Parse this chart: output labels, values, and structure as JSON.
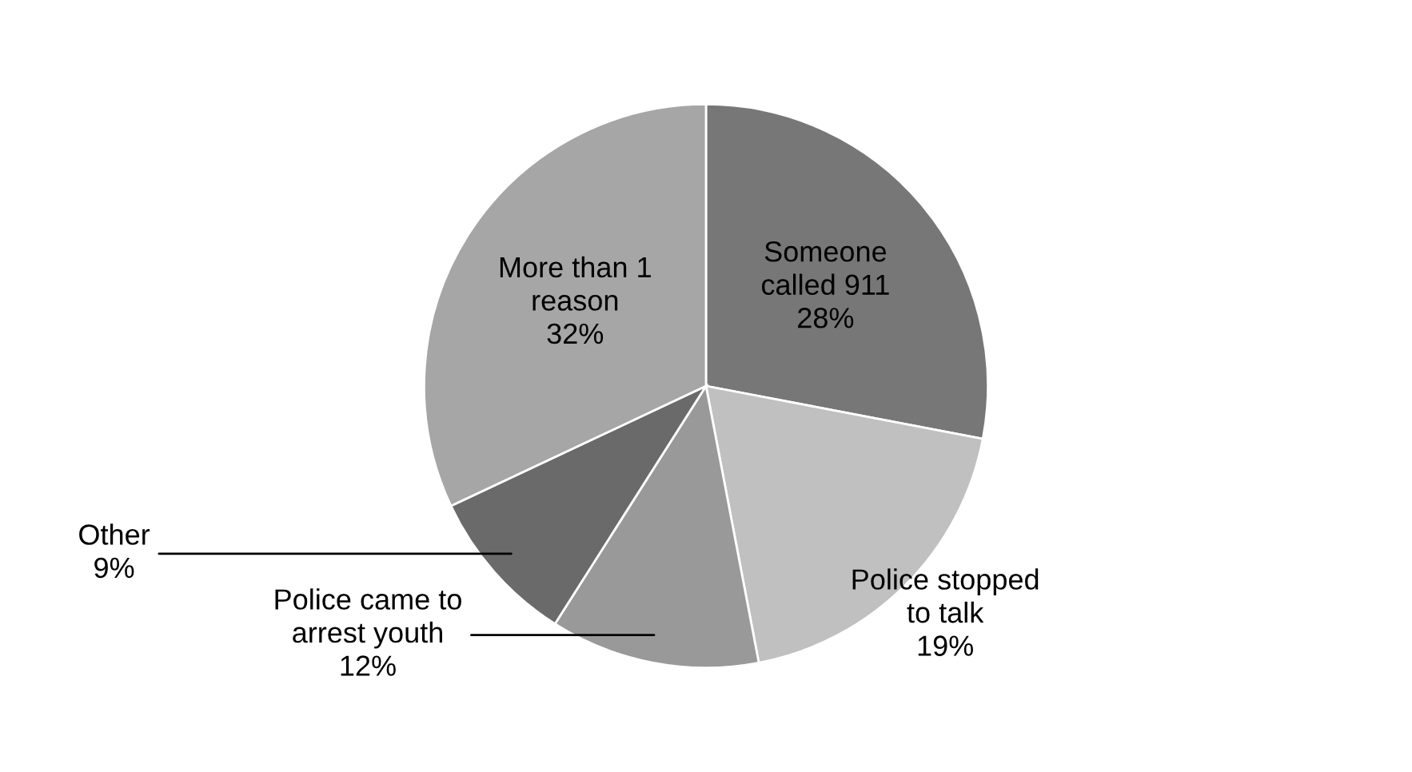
{
  "chart_data": {
    "type": "pie",
    "categories": [
      "Someone called 911",
      "Police stopped to talk",
      "Police came to arrest youth",
      "Other",
      "More than 1 reason"
    ],
    "values": [
      28,
      19,
      12,
      9,
      32
    ],
    "colors": [
      "#777777",
      "#c0c0c0",
      "#999999",
      "#6a6a6a",
      "#a6a6a6"
    ],
    "value_labels": [
      "28%",
      "19%",
      "12%",
      "9%",
      "32%"
    ],
    "legend": false
  }
}
